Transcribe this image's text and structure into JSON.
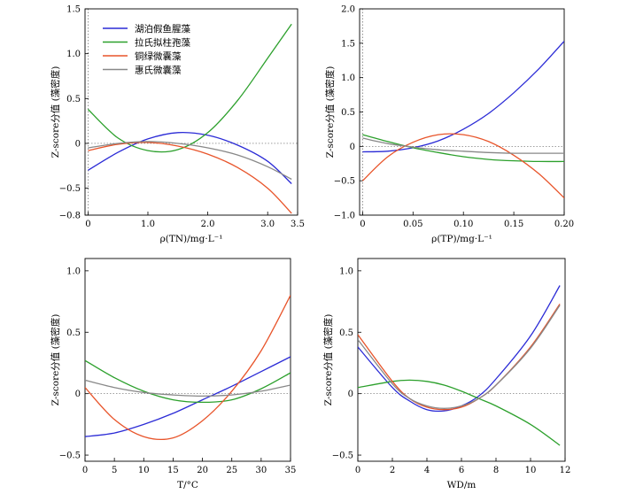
{
  "figure": {
    "background": "#ffffff"
  },
  "chart_data": [
    {
      "type": "line",
      "xlabel": "ρ(TN)/mg·L⁻¹",
      "ylabel": "Z-score分值 (藻密度)",
      "xlim": [
        -0.05,
        3.5
      ],
      "ylim": [
        -0.8,
        1.5
      ],
      "xticks": [
        0,
        1.0,
        2.0,
        3.0,
        3.5
      ],
      "xtick_labels": [
        "0",
        "1.0",
        "2.0",
        "3.0",
        "3.5"
      ],
      "yticks": [
        -0.8,
        -0.5,
        0,
        0.5,
        1.0,
        1.5
      ],
      "ytick_labels": [
        "−0.8",
        "−0.5",
        "0",
        "0.5",
        "1.0",
        "1.5"
      ],
      "zero_line": true,
      "legend": "top-left",
      "series": [
        {
          "name": "湖泊假鱼腥藻",
          "color": "#2b2bd6",
          "x": [
            0,
            0.5,
            1.0,
            1.5,
            2.0,
            2.5,
            3.0,
            3.4
          ],
          "y": [
            -0.3,
            -0.1,
            0.05,
            0.12,
            0.09,
            -0.02,
            -0.2,
            -0.45
          ]
        },
        {
          "name": "拉氏拟柱孢藻",
          "color": "#2ca02c",
          "x": [
            0,
            0.5,
            1.0,
            1.5,
            2.0,
            2.5,
            3.0,
            3.4
          ],
          "y": [
            0.38,
            0.06,
            -0.08,
            -0.07,
            0.12,
            0.48,
            0.95,
            1.33
          ]
        },
        {
          "name": "铜绿微囊藻",
          "color": "#e8542a",
          "x": [
            0,
            0.5,
            1.0,
            1.5,
            2.0,
            2.5,
            3.0,
            3.4
          ],
          "y": [
            -0.08,
            -0.01,
            0.01,
            -0.03,
            -0.12,
            -0.27,
            -0.5,
            -0.78
          ]
        },
        {
          "name": "惠氏微囊藻",
          "color": "#888888",
          "x": [
            0,
            0.5,
            1.0,
            1.5,
            2.0,
            2.5,
            3.0,
            3.4
          ],
          "y": [
            -0.05,
            0.0,
            0.02,
            0.0,
            -0.05,
            -0.13,
            -0.26,
            -0.4
          ]
        }
      ]
    },
    {
      "type": "line",
      "xlabel": "ρ(TP)/mg·L⁻¹",
      "ylabel": "Z-score分值 (藻密度)",
      "xlim": [
        -0.003,
        0.2
      ],
      "ylim": [
        -1.0,
        2.0
      ],
      "xticks": [
        0,
        0.05,
        0.1,
        0.15,
        0.2
      ],
      "xtick_labels": [
        "0",
        "0.05",
        "0.10",
        "0.15",
        "0.20"
      ],
      "yticks": [
        -1.0,
        -0.5,
        0,
        0.5,
        1.0,
        1.5,
        2.0
      ],
      "ytick_labels": [
        "−1.0",
        "−0.5",
        "0",
        "0.5",
        "1.0",
        "1.5",
        "2.0"
      ],
      "zero_line": true,
      "series": [
        {
          "name": "湖泊假鱼腥藻",
          "color": "#2b2bd6",
          "x": [
            0,
            0.025,
            0.05,
            0.075,
            0.1,
            0.125,
            0.15,
            0.175,
            0.2
          ],
          "y": [
            -0.08,
            -0.07,
            -0.02,
            0.08,
            0.25,
            0.48,
            0.78,
            1.13,
            1.53
          ]
        },
        {
          "name": "拉氏拟柱孢藻",
          "color": "#2ca02c",
          "x": [
            0,
            0.025,
            0.05,
            0.075,
            0.1,
            0.125,
            0.15,
            0.175,
            0.2
          ],
          "y": [
            0.17,
            0.07,
            -0.02,
            -0.09,
            -0.15,
            -0.19,
            -0.21,
            -0.22,
            -0.22
          ]
        },
        {
          "name": "铜绿微囊藻",
          "color": "#e8542a",
          "x": [
            0,
            0.025,
            0.05,
            0.075,
            0.1,
            0.125,
            0.15,
            0.175,
            0.2
          ],
          "y": [
            -0.5,
            -0.15,
            0.06,
            0.17,
            0.17,
            0.07,
            -0.13,
            -0.4,
            -0.75
          ]
        },
        {
          "name": "惠氏微囊藻",
          "color": "#888888",
          "x": [
            0,
            0.025,
            0.05,
            0.075,
            0.1,
            0.125,
            0.15,
            0.175,
            0.2
          ],
          "y": [
            0.12,
            0.04,
            -0.01,
            -0.05,
            -0.07,
            -0.09,
            -0.1,
            -0.1,
            -0.1
          ]
        }
      ]
    },
    {
      "type": "line",
      "xlabel": "T/°C",
      "ylabel": "Z-score分值 (藻密度)",
      "xlim": [
        0,
        35
      ],
      "ylim": [
        -0.55,
        1.1
      ],
      "xticks": [
        0,
        5,
        10,
        15,
        20,
        25,
        30,
        35
      ],
      "xtick_labels": [
        "0",
        "5",
        "10",
        "15",
        "20",
        "25",
        "30",
        "35"
      ],
      "yticks": [
        -0.5,
        0,
        0.5,
        1.0
      ],
      "ytick_labels": [
        "−0.5",
        "0",
        "0.5",
        "1.0"
      ],
      "zero_line": true,
      "series": [
        {
          "name": "湖泊假鱼腥藻",
          "color": "#2b2bd6",
          "x": [
            0,
            5,
            10,
            15,
            20,
            25,
            30,
            35
          ],
          "y": [
            -0.35,
            -0.32,
            -0.25,
            -0.16,
            -0.05,
            0.06,
            0.18,
            0.3
          ]
        },
        {
          "name": "拉氏拟柱孢藻",
          "color": "#2ca02c",
          "x": [
            0,
            5,
            10,
            15,
            20,
            25,
            30,
            35
          ],
          "y": [
            0.27,
            0.13,
            0.02,
            -0.05,
            -0.07,
            -0.05,
            0.04,
            0.17
          ]
        },
        {
          "name": "铜绿微囊藻",
          "color": "#e8542a",
          "x": [
            0,
            5,
            10,
            15,
            20,
            25,
            30,
            35
          ],
          "y": [
            0.05,
            -0.21,
            -0.35,
            -0.36,
            -0.22,
            0.02,
            0.35,
            0.8
          ]
        },
        {
          "name": "惠氏微囊藻",
          "color": "#888888",
          "x": [
            0,
            5,
            10,
            15,
            20,
            25,
            30,
            35
          ],
          "y": [
            0.11,
            0.05,
            0.01,
            -0.01,
            -0.02,
            -0.01,
            0.02,
            0.07
          ]
        }
      ]
    },
    {
      "type": "line",
      "xlabel": "WD/m",
      "ylabel": "Z-score分值 (藻密度)",
      "xlim": [
        0,
        12
      ],
      "ylim": [
        -0.55,
        1.1
      ],
      "xticks": [
        0,
        2,
        4,
        6,
        8,
        10,
        12
      ],
      "xtick_labels": [
        "0",
        "2",
        "4",
        "6",
        "8",
        "10",
        "12"
      ],
      "yticks": [
        -0.5,
        0,
        0.5,
        1.0
      ],
      "ytick_labels": [
        "−0.5",
        "0",
        "0.5",
        "1.0"
      ],
      "zero_line": true,
      "series": [
        {
          "name": "湖泊假鱼腥藻",
          "color": "#2b2bd6",
          "x": [
            0,
            2,
            3,
            4,
            5,
            6,
            7,
            8,
            10,
            11.7
          ],
          "y": [
            0.38,
            0.05,
            -0.06,
            -0.13,
            -0.14,
            -0.1,
            -0.02,
            0.12,
            0.47,
            0.88
          ]
        },
        {
          "name": "拉氏拟柱孢藻",
          "color": "#2ca02c",
          "x": [
            0,
            2,
            3,
            4,
            5,
            6,
            7,
            8,
            10,
            11.7
          ],
          "y": [
            0.05,
            0.1,
            0.11,
            0.1,
            0.07,
            0.02,
            -0.04,
            -0.1,
            -0.25,
            -0.42
          ]
        },
        {
          "name": "铜绿微囊藻",
          "color": "#e8542a",
          "x": [
            0,
            2,
            3,
            4,
            5,
            6,
            7,
            8,
            10,
            11.7
          ],
          "y": [
            0.48,
            0.1,
            -0.04,
            -0.11,
            -0.13,
            -0.11,
            -0.04,
            0.07,
            0.38,
            0.73
          ]
        },
        {
          "name": "惠氏微囊藻",
          "color": "#888888",
          "x": [
            0,
            2,
            3,
            4,
            5,
            6,
            7,
            8,
            10,
            11.7
          ],
          "y": [
            0.44,
            0.08,
            -0.04,
            -0.1,
            -0.12,
            -0.1,
            -0.04,
            0.07,
            0.37,
            0.72
          ]
        }
      ]
    }
  ]
}
